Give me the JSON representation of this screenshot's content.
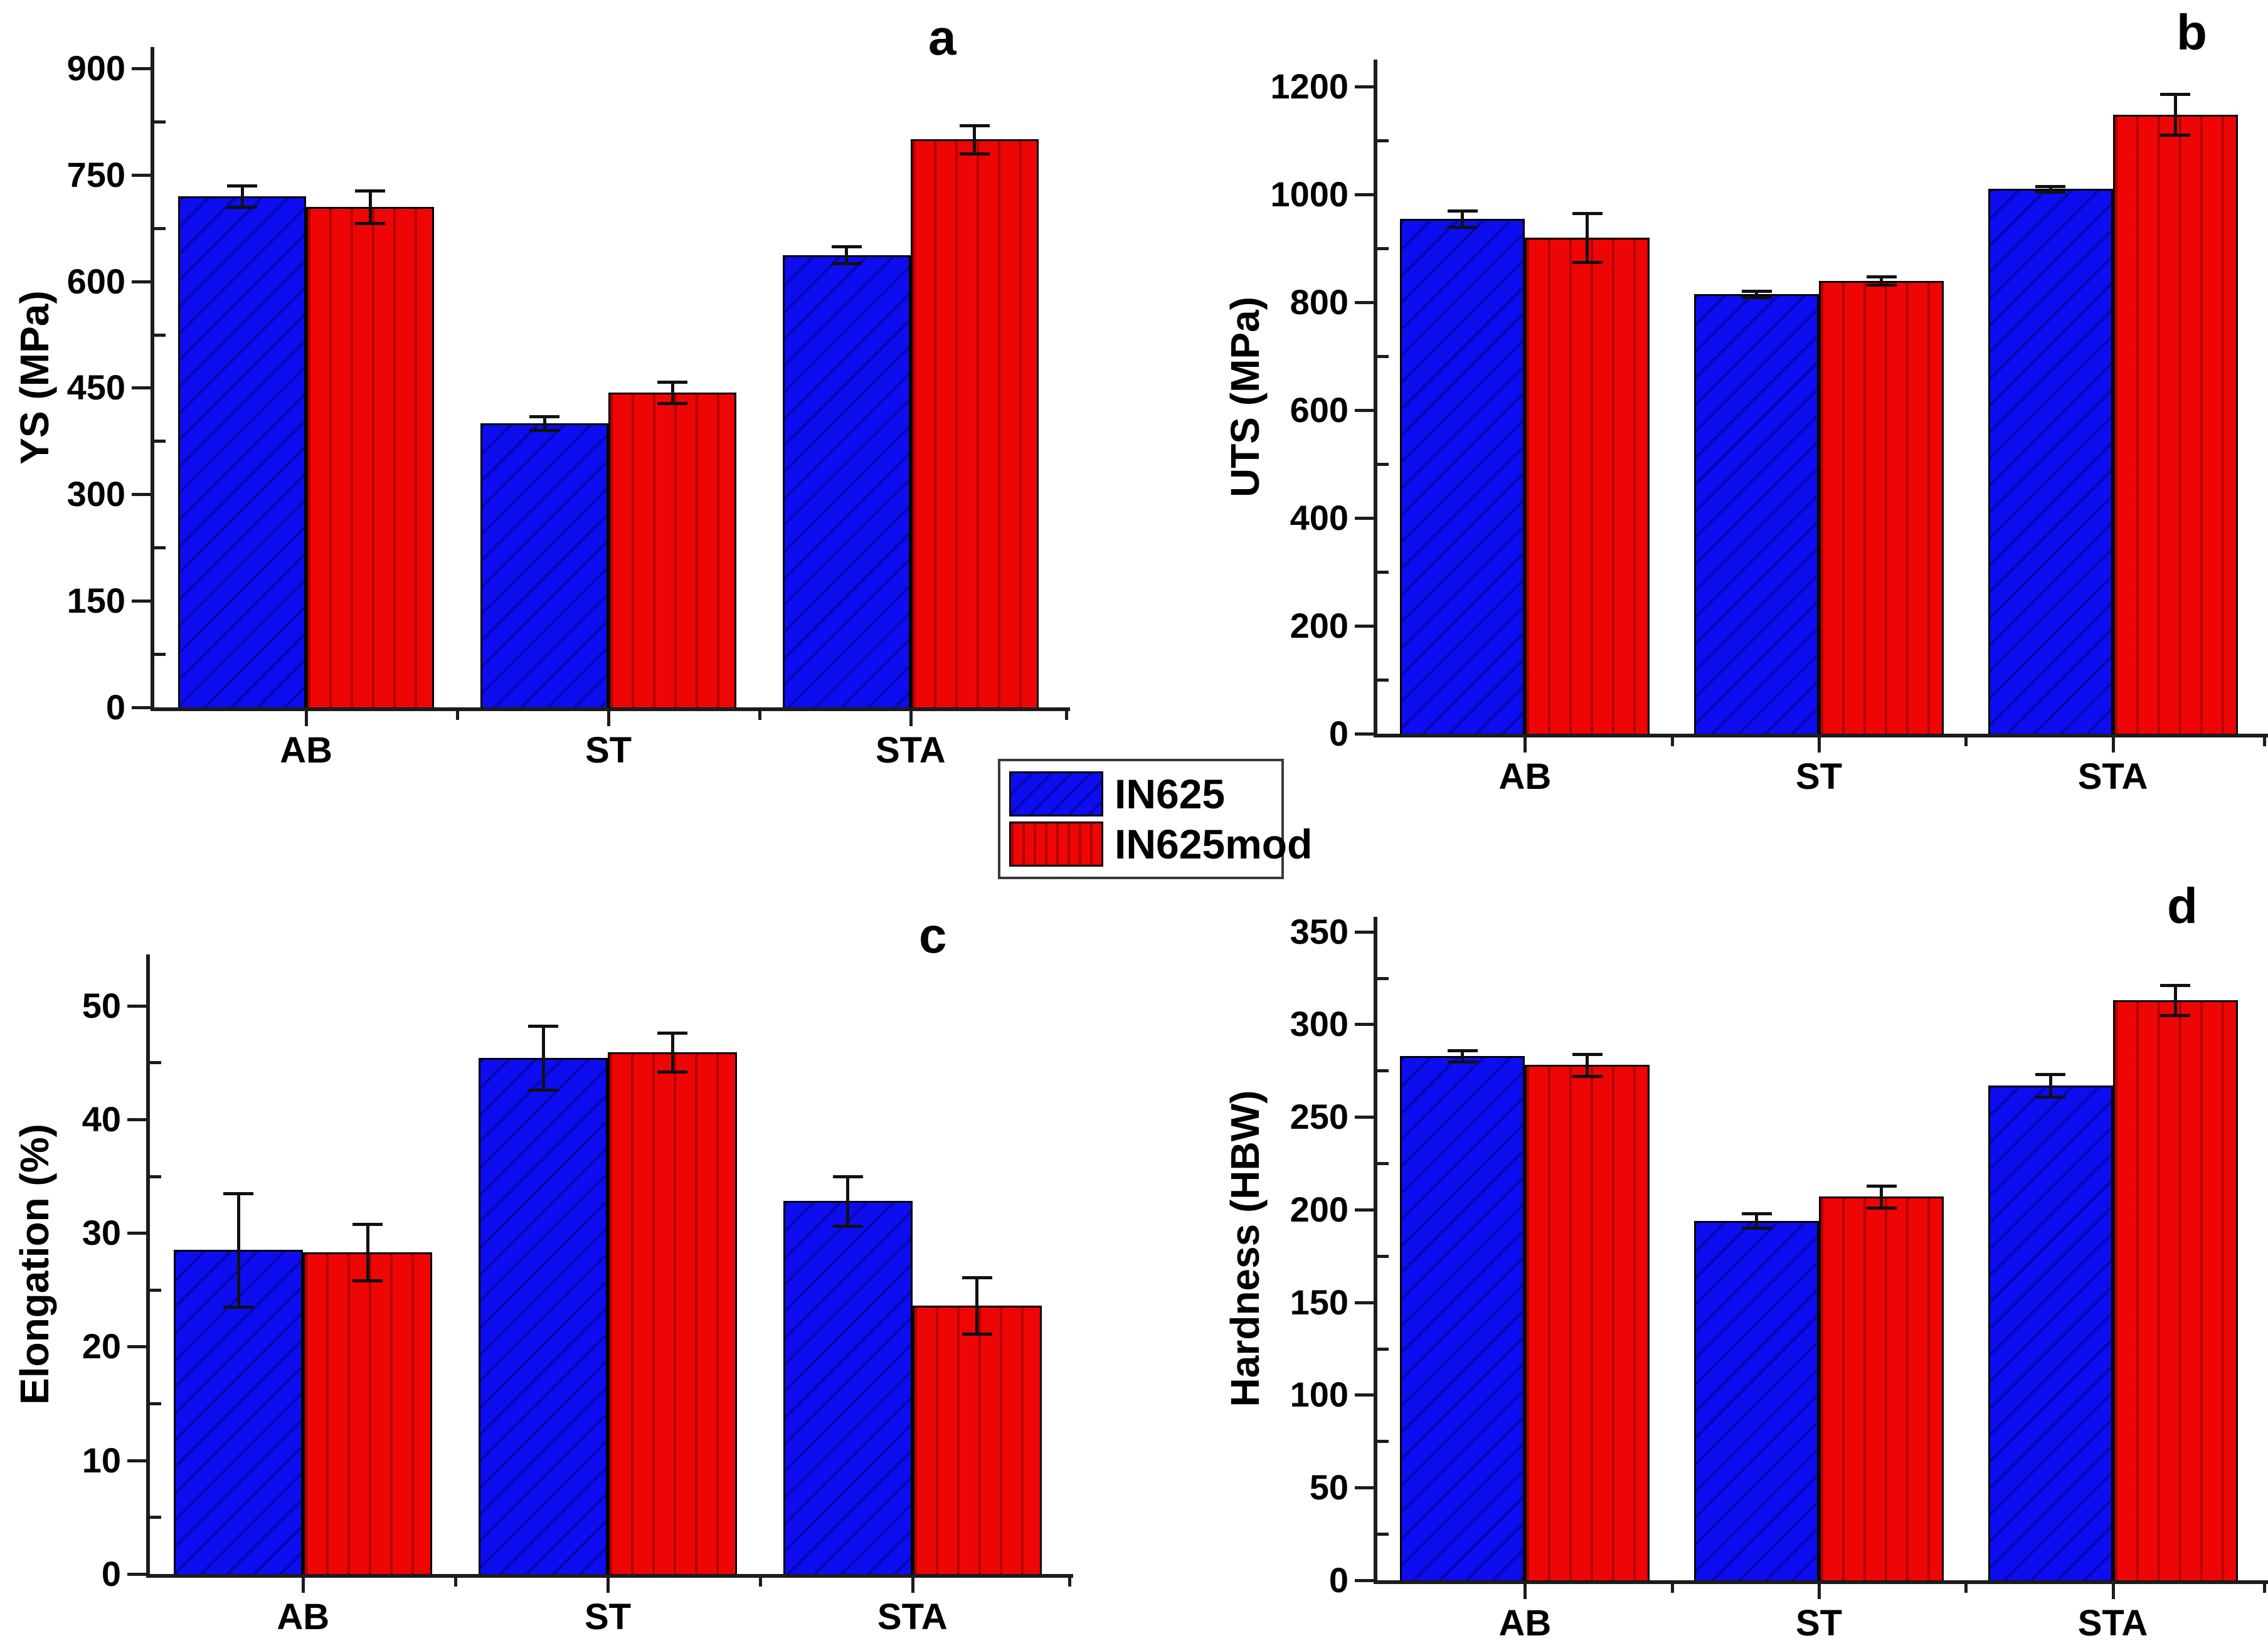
{
  "figure": {
    "background": "#ffffff",
    "series_colors": {
      "IN625": "#0d0df0",
      "IN625mod": "#ee0505"
    },
    "axis_color": "#1c1c1c"
  },
  "legend": {
    "items": [
      {
        "label": "IN625",
        "swatch": "blue-diagonal-hatch-swatch"
      },
      {
        "label": "IN625mod",
        "swatch": "red-vertical-hatch-swatch"
      }
    ]
  },
  "chart_data": [
    {
      "id": "a",
      "type": "bar",
      "letter": "a",
      "ylabel": "YS (MPa)",
      "categories": [
        "AB",
        "ST",
        "STA"
      ],
      "yticks": [
        0,
        150,
        300,
        450,
        600,
        750,
        900
      ],
      "ylim": [
        0,
        900
      ],
      "grid": false,
      "series": [
        {
          "name": "IN625",
          "values": [
            720,
            400,
            637
          ],
          "errors": [
            15,
            10,
            12
          ]
        },
        {
          "name": "IN625mod",
          "values": [
            705,
            443,
            800
          ],
          "errors": [
            23,
            15,
            20
          ]
        }
      ]
    },
    {
      "id": "b",
      "type": "bar",
      "letter": "b",
      "ylabel": "UTS (MPa)",
      "categories": [
        "AB",
        "ST",
        "STA"
      ],
      "yticks": [
        0,
        200,
        400,
        600,
        800,
        1000,
        1200
      ],
      "ylim": [
        0,
        1200
      ],
      "grid": false,
      "series": [
        {
          "name": "IN625",
          "values": [
            955,
            815,
            1010
          ],
          "errors": [
            15,
            6,
            5
          ]
        },
        {
          "name": "IN625mod",
          "values": [
            920,
            840,
            1148
          ],
          "errors": [
            45,
            8,
            38
          ]
        }
      ]
    },
    {
      "id": "c",
      "type": "bar",
      "letter": "c",
      "ylabel": "Elongation (%)",
      "categories": [
        "AB",
        "ST",
        "STA"
      ],
      "yticks": [
        0,
        10,
        20,
        30,
        40,
        50
      ],
      "ylim": [
        0,
        50
      ],
      "grid": false,
      "series": [
        {
          "name": "IN625",
          "values": [
            28.5,
            45.4,
            32.8
          ],
          "errors": [
            5.0,
            2.8,
            2.2
          ]
        },
        {
          "name": "IN625mod",
          "values": [
            28.3,
            45.9,
            23.6
          ],
          "errors": [
            2.5,
            1.7,
            2.5
          ]
        }
      ]
    },
    {
      "id": "d",
      "type": "bar",
      "letter": "d",
      "ylabel": "Hardness (HBW)",
      "categories": [
        "AB",
        "ST",
        "STA"
      ],
      "yticks": [
        0,
        50,
        100,
        150,
        200,
        250,
        300,
        350
      ],
      "ylim": [
        0,
        350
      ],
      "grid": false,
      "series": [
        {
          "name": "IN625",
          "values": [
            283,
            194,
            267
          ],
          "errors": [
            3,
            4,
            6
          ]
        },
        {
          "name": "IN625mod",
          "values": [
            278,
            207,
            313
          ],
          "errors": [
            6,
            6,
            8
          ]
        }
      ]
    }
  ]
}
